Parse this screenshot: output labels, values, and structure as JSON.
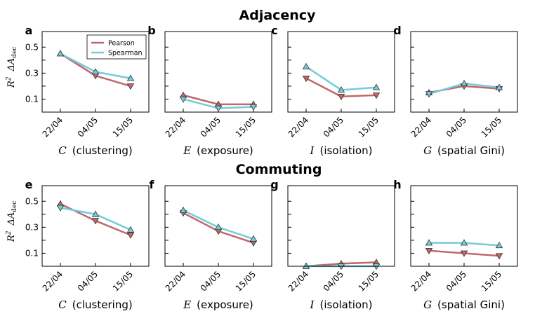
{
  "figure": {
    "row_titles": [
      "Adjacency",
      "Commuting"
    ],
    "y_label_main": "R",
    "y_label_sup": "2",
    "y_label_delta": "ΔA",
    "y_label_sub": "dec",
    "legend": [
      "Pearson",
      "Spearman"
    ],
    "colors": {
      "Pearson": "#c0686a",
      "Spearman": "#74ccd8"
    }
  },
  "chart_data": [
    {
      "type": "line",
      "panel": "a",
      "row": "Adjacency",
      "categories": [
        "22/04",
        "04/05",
        "15/05"
      ],
      "xlabel_symbol": "C",
      "xlabel_text": "(clustering)",
      "yticks": [
        "0.1",
        "0.3",
        "0.5"
      ],
      "ylim": [
        0.0,
        0.62
      ],
      "series": [
        {
          "name": "Pearson",
          "values": [
            0.45,
            0.28,
            0.2
          ]
        },
        {
          "name": "Spearman",
          "values": [
            0.45,
            0.31,
            0.26
          ]
        }
      ]
    },
    {
      "type": "line",
      "panel": "b",
      "row": "Adjacency",
      "categories": [
        "22/04",
        "04/05",
        "15/05"
      ],
      "xlabel_symbol": "E",
      "xlabel_text": "(exposure)",
      "yticks": [],
      "ylim": [
        0.0,
        0.62
      ],
      "series": [
        {
          "name": "Pearson",
          "values": [
            0.13,
            0.06,
            0.06
          ]
        },
        {
          "name": "Spearman",
          "values": [
            0.1,
            0.03,
            0.04
          ]
        }
      ]
    },
    {
      "type": "line",
      "panel": "c",
      "row": "Adjacency",
      "categories": [
        "22/04",
        "04/05",
        "15/05"
      ],
      "xlabel_symbol": "I",
      "xlabel_text": "(isolation)",
      "yticks": [],
      "ylim": [
        0.0,
        0.62
      ],
      "series": [
        {
          "name": "Pearson",
          "values": [
            0.26,
            0.12,
            0.13
          ]
        },
        {
          "name": "Spearman",
          "values": [
            0.35,
            0.17,
            0.19
          ]
        }
      ]
    },
    {
      "type": "line",
      "panel": "d",
      "row": "Adjacency",
      "categories": [
        "22/04",
        "04/05",
        "15/05"
      ],
      "xlabel_symbol": "G",
      "xlabel_text": "(spatial Gini)",
      "yticks": [],
      "ylim": [
        0.0,
        0.62
      ],
      "series": [
        {
          "name": "Pearson",
          "values": [
            0.15,
            0.2,
            0.18
          ]
        },
        {
          "name": "Spearman",
          "values": [
            0.14,
            0.22,
            0.19
          ]
        }
      ]
    },
    {
      "type": "line",
      "panel": "e",
      "row": "Commuting",
      "categories": [
        "22/04",
        "04/05",
        "15/05"
      ],
      "xlabel_symbol": "C",
      "xlabel_text": "(clustering)",
      "yticks": [
        "0.1",
        "0.3",
        "0.5"
      ],
      "ylim": [
        0.0,
        0.62
      ],
      "series": [
        {
          "name": "Pearson",
          "values": [
            0.48,
            0.35,
            0.24
          ]
        },
        {
          "name": "Spearman",
          "values": [
            0.45,
            0.4,
            0.28
          ]
        }
      ]
    },
    {
      "type": "line",
      "panel": "f",
      "row": "Commuting",
      "categories": [
        "22/04",
        "04/05",
        "15/05"
      ],
      "xlabel_symbol": "E",
      "xlabel_text": "(exposure)",
      "yticks": [],
      "ylim": [
        0.0,
        0.62
      ],
      "series": [
        {
          "name": "Pearson",
          "values": [
            0.41,
            0.27,
            0.18
          ]
        },
        {
          "name": "Spearman",
          "values": [
            0.43,
            0.3,
            0.21
          ]
        }
      ]
    },
    {
      "type": "line",
      "panel": "g",
      "row": "Commuting",
      "categories": [
        "22/04",
        "04/05",
        "15/05"
      ],
      "xlabel_symbol": "I",
      "xlabel_text": "(isolation)",
      "yticks": [],
      "ylim": [
        0.0,
        0.62
      ],
      "series": [
        {
          "name": "Pearson",
          "values": [
            0.0,
            0.02,
            0.03
          ]
        },
        {
          "name": "Spearman",
          "values": [
            0.0,
            0.0,
            0.0
          ]
        }
      ]
    },
    {
      "type": "line",
      "panel": "h",
      "row": "Commuting",
      "categories": [
        "22/04",
        "04/05",
        "15/05"
      ],
      "xlabel_symbol": "G",
      "xlabel_text": "(spatial Gini)",
      "yticks": [],
      "ylim": [
        0.0,
        0.62
      ],
      "series": [
        {
          "name": "Pearson",
          "values": [
            0.12,
            0.1,
            0.08
          ]
        },
        {
          "name": "Spearman",
          "values": [
            0.18,
            0.18,
            0.16
          ]
        }
      ]
    }
  ]
}
